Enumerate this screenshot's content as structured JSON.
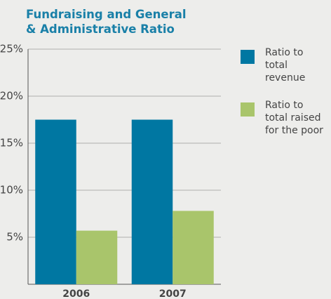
{
  "chart_data": {
    "type": "bar",
    "title": "Fundraising and General & Administrative Ratio",
    "categories": [
      "2006",
      "2007"
    ],
    "series": [
      {
        "name": "Ratio to total revenue",
        "color": "#0077a2",
        "values": [
          17.5,
          17.5
        ]
      },
      {
        "name": "Ratio to total raised for the poor",
        "color": "#a9c56b",
        "values": [
          5.7,
          7.8
        ]
      }
    ],
    "ylim": [
      0,
      25
    ],
    "yticks": [
      {
        "value": 5,
        "label": "5%"
      },
      {
        "value": 10,
        "label": "10%"
      },
      {
        "value": 15,
        "label": "15%"
      },
      {
        "value": 20,
        "label": "20%"
      },
      {
        "value": 25,
        "label": "25%"
      }
    ],
    "grid": true,
    "legend": "right"
  }
}
